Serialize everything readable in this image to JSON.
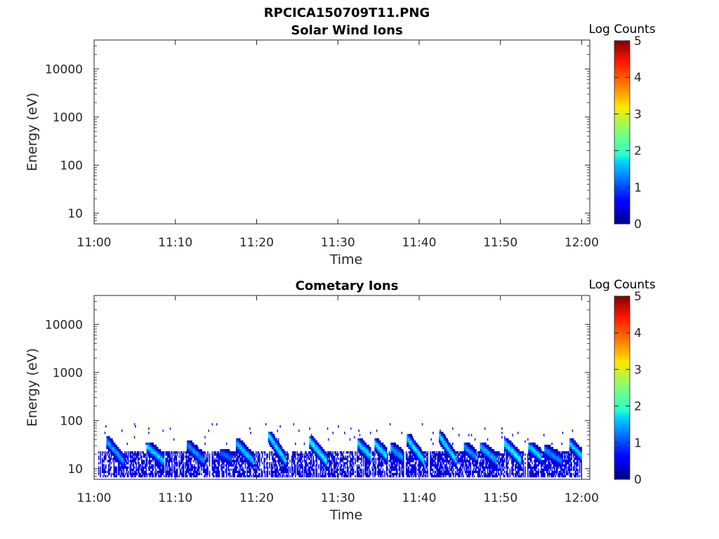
{
  "figure_title": "RPCICA150709T11.PNG",
  "chart_data": [
    {
      "type": "heatmap",
      "title": "Solar Wind Ions",
      "xlabel": "Time",
      "ylabel": "Energy (eV)",
      "x_ticks": [
        "11:00",
        "11:10",
        "11:20",
        "11:30",
        "11:40",
        "11:50",
        "12:00"
      ],
      "xlim": [
        "11:00",
        "12:01"
      ],
      "y_scale": "log",
      "y_ticks": [
        10,
        100,
        1000,
        10000
      ],
      "ylim": [
        6,
        40000
      ],
      "colorbar": {
        "title": "Log Counts",
        "ticks": [
          0,
          1,
          2,
          3,
          4,
          5
        ],
        "range": [
          0,
          5
        ],
        "colormap": "jet"
      },
      "bursts": []
    },
    {
      "type": "heatmap",
      "title": "Cometary Ions",
      "xlabel": "Time",
      "ylabel": "Energy (eV)",
      "x_ticks": [
        "11:00",
        "11:10",
        "11:20",
        "11:30",
        "11:40",
        "11:50",
        "12:00"
      ],
      "xlim": [
        "11:00",
        "12:01"
      ],
      "y_scale": "log",
      "y_ticks": [
        10,
        100,
        1000,
        10000
      ],
      "ylim": [
        6,
        40000
      ],
      "colorbar": {
        "title": "Log Counts",
        "ticks": [
          0,
          1,
          2,
          3,
          4,
          5
        ],
        "range": [
          0,
          5
        ],
        "colormap": "jet"
      },
      "background": {
        "e_low": 7,
        "e_high": 22,
        "log_counts": 0.6
      },
      "bursts": [
        {
          "time": "11:02",
          "peak_energy_ev": 40,
          "peak_log_counts": 1.6
        },
        {
          "time": "11:07",
          "peak_energy_ev": 30,
          "peak_log_counts": 1.8
        },
        {
          "time": "11:12",
          "peak_energy_ev": 32,
          "peak_log_counts": 1.5
        },
        {
          "time": "11:16",
          "peak_energy_ev": 22,
          "peak_log_counts": 1.2
        },
        {
          "time": "11:18",
          "peak_energy_ev": 35,
          "peak_log_counts": 1.8
        },
        {
          "time": "11:22",
          "peak_energy_ev": 50,
          "peak_log_counts": 2.0
        },
        {
          "time": "11:27",
          "peak_energy_ev": 40,
          "peak_log_counts": 2.1
        },
        {
          "time": "11:33",
          "peak_energy_ev": 35,
          "peak_log_counts": 2.0
        },
        {
          "time": "11:35",
          "peak_energy_ev": 35,
          "peak_log_counts": 2.0
        },
        {
          "time": "11:37",
          "peak_energy_ev": 28,
          "peak_log_counts": 1.6
        },
        {
          "time": "11:39",
          "peak_energy_ev": 45,
          "peak_log_counts": 2.0
        },
        {
          "time": "11:43",
          "peak_energy_ev": 50,
          "peak_log_counts": 2.0
        },
        {
          "time": "11:46",
          "peak_energy_ev": 30,
          "peak_log_counts": 1.5
        },
        {
          "time": "11:48",
          "peak_energy_ev": 30,
          "peak_log_counts": 1.7
        },
        {
          "time": "11:51",
          "peak_energy_ev": 35,
          "peak_log_counts": 2.1
        },
        {
          "time": "11:54",
          "peak_energy_ev": 30,
          "peak_log_counts": 1.8
        },
        {
          "time": "11:56",
          "peak_energy_ev": 25,
          "peak_log_counts": 1.4
        },
        {
          "time": "11:59",
          "peak_energy_ev": 35,
          "peak_log_counts": 1.8
        }
      ]
    }
  ]
}
